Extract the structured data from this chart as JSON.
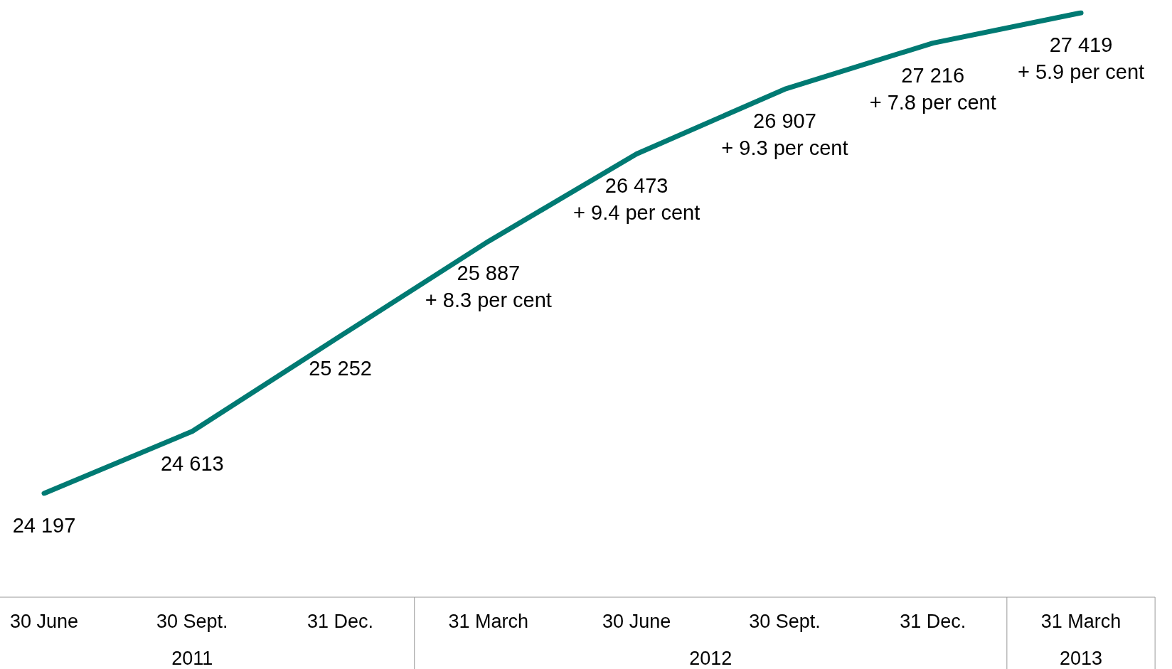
{
  "chart_data": {
    "type": "line",
    "categories": [
      "30 June",
      "30 Sept.",
      "31 Dec.",
      "31 March",
      "30 June",
      "30 Sept.",
      "31 Dec.",
      "31 March"
    ],
    "series": [
      {
        "color": "#007a73",
        "values": [
          24197,
          24613,
          25252,
          25887,
          26473,
          26907,
          27216,
          27419
        ],
        "value_labels": [
          "24 197",
          "24 613",
          "25 252",
          "25 887\n+ 8.3 per cent",
          "26 473\n+ 9.4 per cent",
          "26 907\n+ 9.3 per cent",
          "27 216\n+ 7.8 per cent",
          "27 419\n+ 5.9 per cent"
        ]
      }
    ],
    "annotations": [
      "2011",
      "2012",
      "2013"
    ],
    "marker": "none",
    "line_style": "solid",
    "grid": false
  }
}
